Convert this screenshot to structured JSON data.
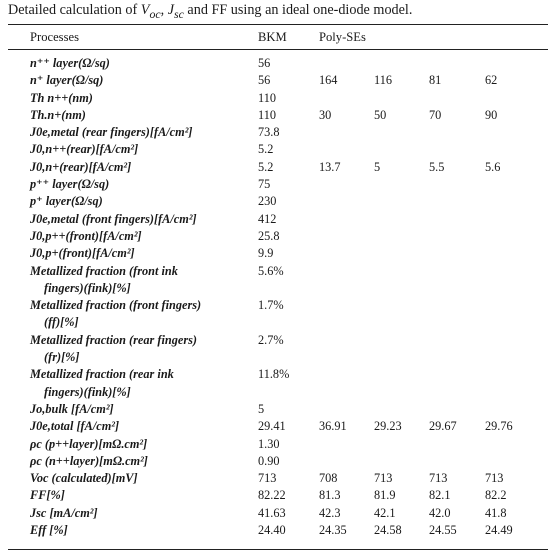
{
  "caption": "Detailed calculation of V_oc, J_sc and FF using an ideal one-diode model.",
  "caption_parts": {
    "pre": "Detailed calculation of ",
    "v_main": "V",
    "v_sub": "oc",
    "sep1": ", ",
    "j_main": "J",
    "j_sub": "sc",
    "post": " and FF using an ideal one-diode model."
  },
  "columns": {
    "processes": "Processes",
    "bkm": "BKM",
    "poly": "Poly-SEs"
  },
  "rows": [
    {
      "label": "n⁺⁺ layer(Ω/sq)",
      "values": [
        "56"
      ]
    },
    {
      "label": "n⁺ layer(Ω/sq)",
      "values": [
        "56",
        "164",
        "116",
        "81",
        "62"
      ]
    },
    {
      "label": "Th n++(nm)",
      "values": [
        "110"
      ]
    },
    {
      "label": "Th.n+(nm)",
      "values": [
        "110",
        "30",
        "50",
        "70",
        "90"
      ]
    },
    {
      "label": "J0e,metal (rear fingers)[fA/cm²]",
      "values": [
        "73.8"
      ]
    },
    {
      "label": "J0,n++(rear)[fA/cm²]",
      "values": [
        "5.2"
      ]
    },
    {
      "label": "J0,n+(rear)[fA/cm²]",
      "values": [
        "5.2",
        "13.7",
        "5",
        "5.5",
        "5.6"
      ]
    },
    {
      "label": "p⁺⁺ layer(Ω/sq)",
      "values": [
        "75"
      ]
    },
    {
      "label": "p⁺ layer(Ω/sq)",
      "values": [
        "230"
      ]
    },
    {
      "label": "J0e,metal (front fingers)[fA/cm²]",
      "values": [
        "412"
      ]
    },
    {
      "label": "J0,p++(front)[fA/cm²]",
      "values": [
        "25.8"
      ]
    },
    {
      "label": "J0,p+(front)[fA/cm²]",
      "values": [
        "9.9"
      ]
    },
    {
      "label": "Metallized fraction (front ink fingers)(fink)[%]",
      "line1": "Metallized fraction (front ink",
      "line2": "fingers)(fink)[%]",
      "values": [
        "5.6%"
      ]
    },
    {
      "label": "Metallized fraction (front fingers) (ff)[%]",
      "line1": "Metallized fraction (front fingers)",
      "line2": "(ff)[%]",
      "values": [
        "1.7%"
      ]
    },
    {
      "label": "Metallized fraction (rear fingers) (fr)[%]",
      "line1": "Metallized fraction (rear fingers)",
      "line2": "(fr)[%]",
      "values": [
        "2.7%"
      ]
    },
    {
      "label": "Metallized fraction (rear ink fingers)(fink)[%]",
      "line1": "Metallized fraction (rear ink",
      "line2": "fingers)(fink)[%]",
      "values": [
        "11.8%"
      ]
    },
    {
      "label": "Jo,bulk [fA/cm²]",
      "values": [
        "5"
      ]
    },
    {
      "label": "J0e,total [fA/cm²]",
      "values": [
        "29.41",
        "36.91",
        "29.23",
        "29.67",
        "29.76"
      ]
    },
    {
      "label": "ρc (p++layer)[mΩ.cm²]",
      "values": [
        "1.30"
      ]
    },
    {
      "label": "ρc (n++layer)[mΩ.cm²]",
      "values": [
        "0.90"
      ]
    },
    {
      "label": "Voc (calculated)[mV]",
      "values": [
        "713",
        "708",
        "713",
        "713",
        "713"
      ]
    },
    {
      "label": "FF[%]",
      "values": [
        "82.22",
        "81.3",
        "81.9",
        "82.1",
        "82.2"
      ]
    },
    {
      "label": "Jsc [mA/cm²]",
      "values": [
        "41.63",
        "42.3",
        "42.1",
        "42.0",
        "41.8"
      ]
    },
    {
      "label": "Eff [%]",
      "values": [
        "24.40",
        "24.35",
        "24.58",
        "24.55",
        "24.49"
      ]
    }
  ]
}
